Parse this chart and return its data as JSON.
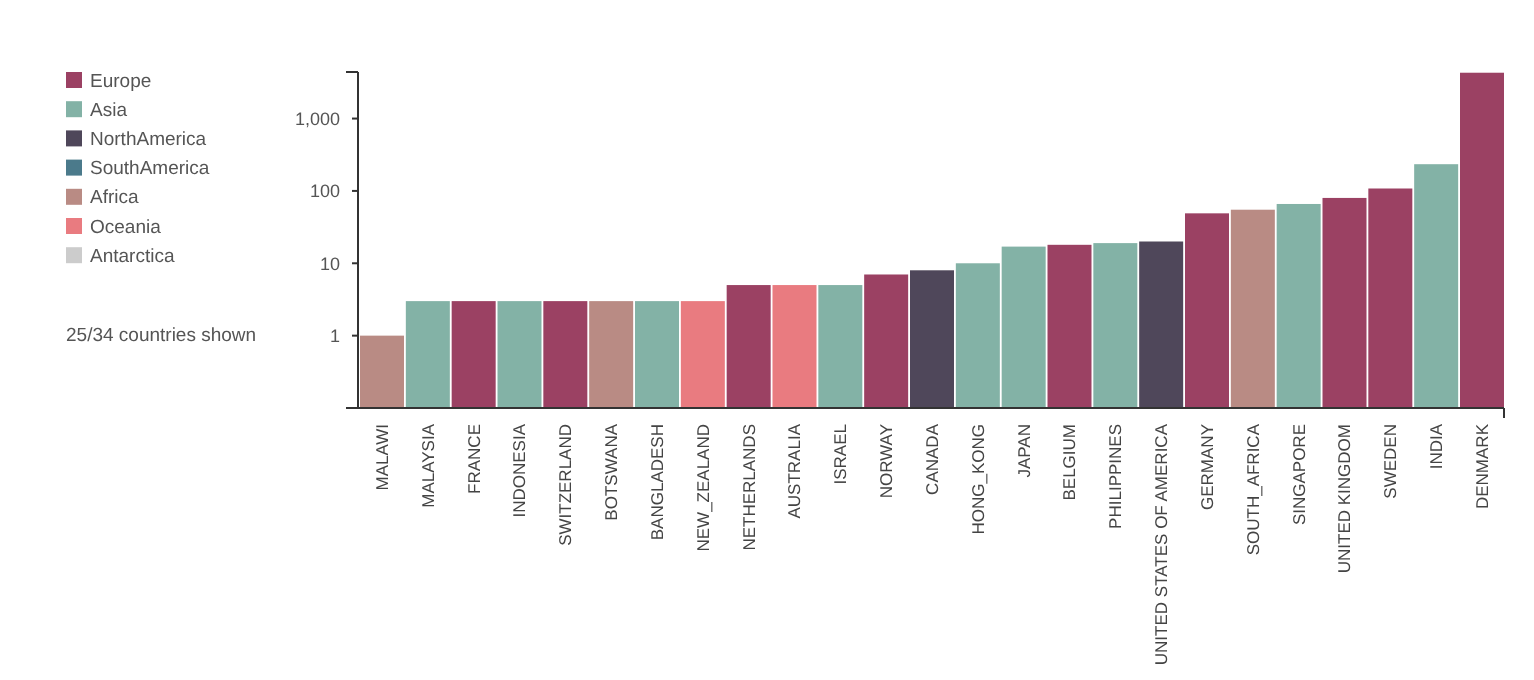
{
  "chart_data": {
    "type": "bar",
    "log": true,
    "categories": [
      "MALAWI",
      "MALAYSIA",
      "FRANCE",
      "INDONESIA",
      "SWITZERLAND",
      "BOTSWANA",
      "BANGLADESH",
      "NEW_ZEALAND",
      "NETHERLANDS",
      "AUSTRALIA",
      "ISRAEL",
      "NORWAY",
      "CANADA",
      "HONG_KONG",
      "JAPAN",
      "BELGIUM",
      "PHILIPPINES",
      "UNITED STATES OF AMERICA",
      "GERMANY",
      "SOUTH_AFRICA",
      "SINGAPORE",
      "UNITED KINGDOM",
      "SWEDEN",
      "INDIA",
      "DENMARK"
    ],
    "series": [
      {
        "name": "Europe",
        "color": "#9b4163",
        "values": [
          null,
          null,
          3,
          null,
          3,
          null,
          null,
          null,
          5,
          null,
          null,
          7,
          null,
          null,
          null,
          18,
          null,
          null,
          49,
          null,
          null,
          80,
          108,
          null,
          4300
        ]
      },
      {
        "name": "Asia",
        "color": "#83b2a6",
        "values": [
          null,
          3,
          null,
          3,
          null,
          null,
          3,
          null,
          null,
          null,
          5,
          null,
          null,
          10,
          17,
          null,
          19,
          null,
          null,
          null,
          66,
          null,
          null,
          234,
          null
        ]
      },
      {
        "name": "NorthAmerica",
        "color": "#4f475a",
        "values": [
          null,
          null,
          null,
          null,
          null,
          null,
          null,
          null,
          null,
          null,
          null,
          null,
          8,
          null,
          null,
          null,
          null,
          20,
          null,
          null,
          null,
          null,
          null,
          null,
          null
        ]
      },
      {
        "name": "SouthAmerica",
        "color": "#4b7a8b",
        "values": [
          null,
          null,
          null,
          null,
          null,
          null,
          null,
          null,
          null,
          null,
          null,
          null,
          null,
          null,
          null,
          null,
          null,
          null,
          null,
          null,
          null,
          null,
          null,
          null,
          null
        ]
      },
      {
        "name": "Africa",
        "color": "#b98b84",
        "values": [
          1,
          null,
          null,
          null,
          null,
          3,
          null,
          null,
          null,
          null,
          null,
          null,
          null,
          null,
          null,
          null,
          null,
          null,
          null,
          55,
          null,
          null,
          null,
          null,
          null
        ]
      },
      {
        "name": "Oceania",
        "color": "#e97b80",
        "values": [
          null,
          null,
          null,
          null,
          null,
          null,
          null,
          3,
          null,
          5,
          null,
          null,
          null,
          null,
          null,
          null,
          null,
          null,
          null,
          null,
          null,
          null,
          null,
          null,
          null
        ]
      },
      {
        "name": "Antarctica",
        "color": "#cccccc",
        "values": [
          null,
          null,
          null,
          null,
          null,
          null,
          null,
          null,
          null,
          null,
          null,
          null,
          null,
          null,
          null,
          null,
          null,
          null,
          null,
          null,
          null,
          null,
          null,
          null,
          null
        ]
      }
    ],
    "ylim": [
      0.1,
      4400
    ],
    "yticks": [
      1,
      10,
      100,
      {
        "value": 1000,
        "label": "1,000"
      }
    ],
    "legend": "left",
    "annotations": [
      "25/34 countries shown"
    ]
  }
}
